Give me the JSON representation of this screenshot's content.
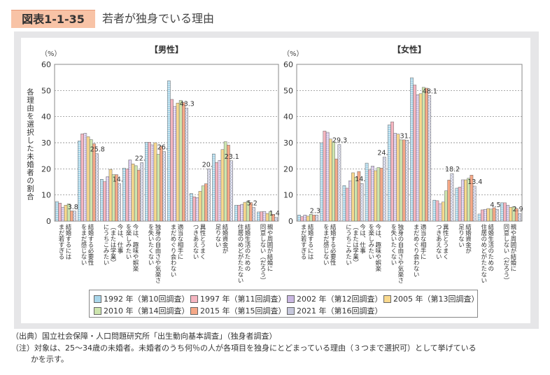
{
  "figure_number": "図表1-1-35",
  "title": "若者が独身でいる理由",
  "y_axis_label": "各理由を選択した未婚者の割合",
  "colors": {
    "1992": "#a9d6ea",
    "1997": "#f5b5c0",
    "2002": "#c9b7e2",
    "2005": "#f9d98e",
    "2010": "#cde5ae",
    "2015": "#f5a887",
    "2021": "#c6c8dc"
  },
  "legend": [
    {
      "label": "1992 年（第10回調査）",
      "key": "1992"
    },
    {
      "label": "1997 年（第11回調査）",
      "key": "1997"
    },
    {
      "label": "2002 年（第12回調査）",
      "key": "2002"
    },
    {
      "label": "2005 年（第13回調査）",
      "key": "2005"
    },
    {
      "label": "2010 年（第14回調査）",
      "key": "2010"
    },
    {
      "label": "2015 年（第15回調査）",
      "key": "2015"
    },
    {
      "label": "2021 年（第16回調査）",
      "key": "2021"
    }
  ],
  "chart_data": [
    {
      "type": "bar",
      "title": "【男性】",
      "yunit": "（%）",
      "ylim": [
        0,
        60
      ],
      "yticks": [
        0,
        10,
        20,
        30,
        40,
        50,
        60
      ],
      "grid": true,
      "categories": [
        "結婚するには\nまだ若すぎる",
        "結婚する必要性\nをまだ感じない",
        "今は、仕事\n（または学業）\nにうちこみたい",
        "今は、趣味や娯楽\nを楽しみたい",
        "独身の自由さや気楽さ\nを失いたくない",
        "適当な相手に\nまだめぐり会わない",
        "異性とうまく\nつきあえない",
        "結婚資金が\n足りない",
        "結婚生活のための\n住居のめどがたたない",
        "親や周囲が結婚に\n同意しない（だろう）"
      ],
      "series": [
        {
          "key": "1992",
          "values": [
            7.5,
            30.7,
            16.0,
            20.3,
            30.2,
            53.7,
            10.6,
            25.7,
            6.1,
            3.5
          ]
        },
        {
          "key": "1997",
          "values": [
            6.9,
            33.4,
            15.1,
            19.9,
            30.2,
            46.6,
            9.3,
            22.4,
            6.1,
            3.6
          ]
        },
        {
          "key": "2002",
          "values": [
            5.3,
            33.6,
            17.0,
            23.4,
            29.2,
            43.9,
            9.0,
            23.2,
            6.4,
            3.7
          ]
        },
        {
          "key": "2005",
          "values": [
            6.1,
            32.3,
            19.8,
            21.9,
            30.0,
            45.2,
            11.4,
            27.4,
            7.2,
            2.9
          ]
        },
        {
          "key": "2010",
          "values": [
            6.6,
            31.2,
            17.8,
            21.2,
            25.6,
            46.2,
            13.5,
            30.4,
            7.6,
            3.6
          ]
        },
        {
          "key": "2015",
          "values": [
            3.9,
            29.6,
            17.8,
            19.5,
            28.7,
            45.4,
            14.3,
            29.1,
            7.1,
            2.6
          ]
        },
        {
          "key": "2021",
          "values": [
            3.8,
            25.8,
            14.3,
            22.4,
            26.6,
            43.3,
            20.0,
            23.1,
            5.2,
            1.4
          ]
        }
      ],
      "data_labels": [
        "3.8",
        "25.8",
        "14.3",
        "22.4",
        "26.6",
        "43.3",
        "20.0",
        "23.1",
        "5.2",
        "1.4"
      ]
    },
    {
      "type": "bar",
      "title": "【女性】",
      "yunit": "（%）",
      "ylim": [
        0,
        60
      ],
      "yticks": [
        0,
        10,
        20,
        30,
        40,
        50,
        60
      ],
      "grid": true,
      "categories": [
        "結婚するには\nまだ若すぎる",
        "結婚する必要性\nをまだ感じない",
        "今は、仕事\n（または学業）\nにうちこみたい",
        "今は、趣味や娯楽\nを楽しみたい",
        "独身の自由さや気楽さ\nを失いたくない",
        "適当な相手に\nまだめぐり会わない",
        "異性とうまく\nつきあえない",
        "結婚資金が\n足りない",
        "結婚生活のための\n住居のめどがたたない",
        "親や周囲が結婚に\n同意しない（だろう）"
      ],
      "series": [
        {
          "key": "1992",
          "values": [
            2.3,
            30.0,
            13.6,
            22.2,
            36.8,
            54.9,
            8.0,
            12.6,
            2.7,
            7.0
          ]
        },
        {
          "key": "1997",
          "values": [
            1.7,
            34.5,
            12.6,
            19.6,
            38.0,
            52.1,
            7.8,
            13.0,
            4.3,
            7.0
          ]
        },
        {
          "key": "2002",
          "values": [
            2.3,
            34.0,
            15.4,
            21.1,
            33.6,
            48.4,
            6.7,
            15.8,
            4.5,
            6.1
          ]
        },
        {
          "key": "2005",
          "values": [
            1.9,
            31.4,
            18.5,
            19.3,
            33.3,
            48.8,
            7.3,
            15.8,
            4.8,
            5.3
          ]
        },
        {
          "key": "2010",
          "values": [
            2.6,
            30.3,
            16.8,
            20.5,
            31.1,
            51.2,
            11.6,
            16.4,
            4.6,
            5.5
          ]
        },
        {
          "key": "2015",
          "values": [
            2.3,
            23.8,
            19.0,
            20.3,
            31.1,
            50.9,
            15.7,
            17.6,
            5.1,
            4.8
          ]
        },
        {
          "key": "2021",
          "values": [
            2.3,
            29.3,
            14.4,
            24.5,
            31.0,
            48.1,
            18.2,
            13.4,
            4.5,
            2.9
          ]
        }
      ],
      "data_labels": [
        "2.3",
        "29.3",
        "14.4",
        "24.5",
        "31.0",
        "48.1",
        "18.2",
        "13.4",
        "4.5",
        "2.9"
      ]
    }
  ],
  "notes": {
    "source": "（出典）国立社会保障・人口問題研究所「出生動向基本調査」（独身者調査）",
    "note_line1": "（注）対象は、25～34歳の未婚者。未婚者のうち何％の人が各項目を独身にとどまっている理由（３つまで選択可）として挙げている",
    "note_line2": "かを示す。"
  }
}
